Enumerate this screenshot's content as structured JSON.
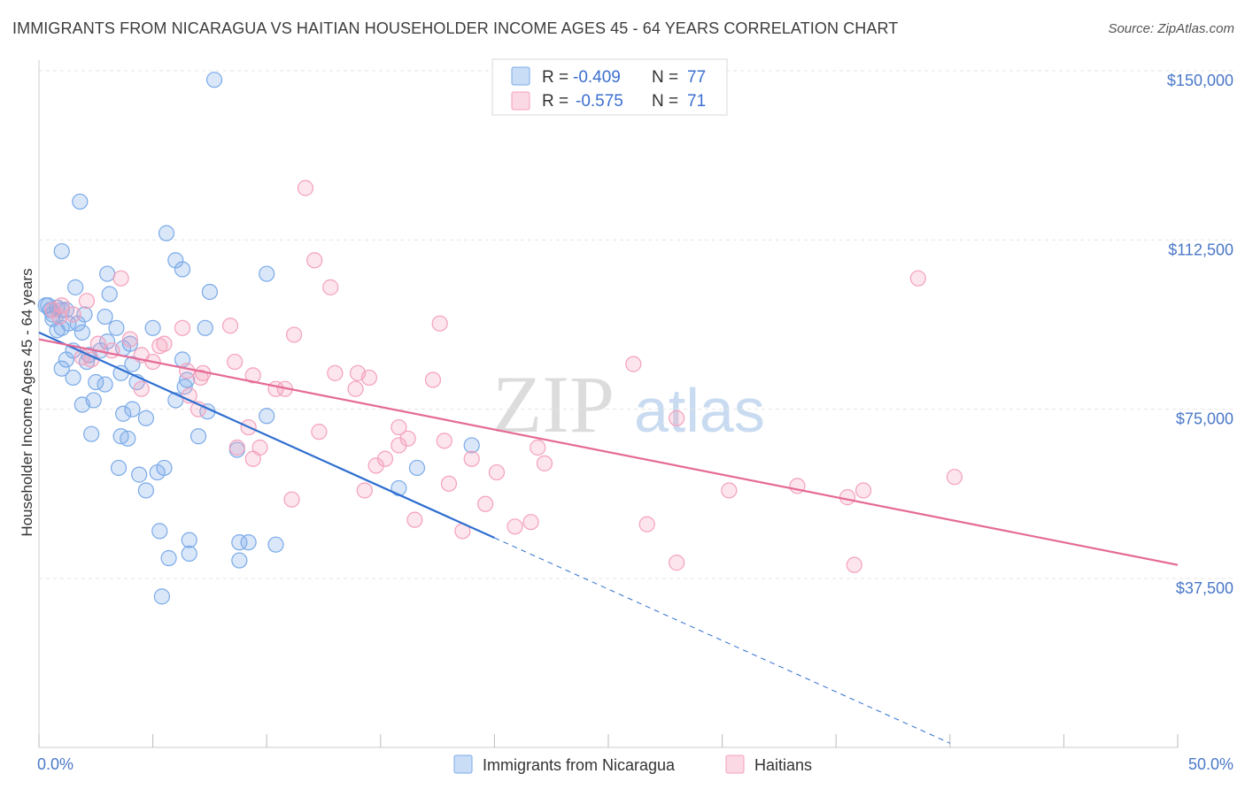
{
  "title": "IMMIGRANTS FROM NICARAGUA VS HAITIAN HOUSEHOLDER INCOME AGES 45 - 64 YEARS CORRELATION CHART",
  "source": "Source: ZipAtlas.com",
  "watermark": {
    "zip": "ZIP",
    "atlas": "atlas"
  },
  "chart_data": {
    "type": "scatter",
    "xlabel": "",
    "ylabel": "Householder Income Ages 45 - 64 years",
    "xlim": [
      0,
      50
    ],
    "ylim": [
      0,
      155000
    ],
    "x_tick_labels": [
      "0.0%",
      "50.0%"
    ],
    "y_ticks": [
      {
        "value": 37500,
        "label": "$37,500"
      },
      {
        "value": 75000,
        "label": "$75,000"
      },
      {
        "value": 112500,
        "label": "$112,500"
      },
      {
        "value": 150000,
        "label": "$150,000"
      }
    ],
    "legend_stats": [
      {
        "r_label": "R =",
        "r": "-0.409",
        "n_label": "N =",
        "n": "77"
      },
      {
        "r_label": "R =",
        "r": "-0.575",
        "n_label": "N =",
        "n": "71"
      }
    ],
    "series": [
      {
        "name": "Immigrants from Nicaragua",
        "color": "#7aaae8",
        "line_color": "#2f6fd0",
        "trend": {
          "x0": 0,
          "y0": 92000,
          "x1": 20,
          "y1": 46500,
          "dash_to_x": 40,
          "dash_to_y": 1000
        },
        "points": [
          [
            7.7,
            148000
          ],
          [
            1.8,
            121000
          ],
          [
            1.0,
            110000
          ],
          [
            5.6,
            114000
          ],
          [
            6.0,
            108000
          ],
          [
            6.3,
            106000
          ],
          [
            3.0,
            105000
          ],
          [
            10.0,
            105000
          ],
          [
            1.6,
            102000
          ],
          [
            7.5,
            101000
          ],
          [
            3.1,
            100500
          ],
          [
            0.4,
            98000
          ],
          [
            0.5,
            97000
          ],
          [
            0.8,
            97500
          ],
          [
            1.2,
            97000
          ],
          [
            0.6,
            96000
          ],
          [
            2.0,
            96000
          ],
          [
            1.7,
            94000
          ],
          [
            2.9,
            95500
          ],
          [
            1.0,
            93000
          ],
          [
            3.4,
            93000
          ],
          [
            5.0,
            93000
          ],
          [
            7.3,
            93000
          ],
          [
            0.8,
            92500
          ],
          [
            1.9,
            92000
          ],
          [
            4.0,
            89500
          ],
          [
            3.7,
            88500
          ],
          [
            2.7,
            88000
          ],
          [
            1.5,
            88000
          ],
          [
            2.2,
            87000
          ],
          [
            1.2,
            86000
          ],
          [
            6.3,
            86000
          ],
          [
            4.1,
            85000
          ],
          [
            2.1,
            85500
          ],
          [
            1.0,
            84000
          ],
          [
            3.6,
            83000
          ],
          [
            1.5,
            82000
          ],
          [
            2.5,
            81000
          ],
          [
            2.9,
            80500
          ],
          [
            4.3,
            81000
          ],
          [
            6.4,
            80000
          ],
          [
            6.5,
            81500
          ],
          [
            2.4,
            77000
          ],
          [
            1.9,
            76000
          ],
          [
            4.1,
            75000
          ],
          [
            7.4,
            74500
          ],
          [
            3.7,
            74000
          ],
          [
            10.0,
            73500
          ],
          [
            4.7,
            73000
          ],
          [
            2.3,
            69500
          ],
          [
            3.6,
            69000
          ],
          [
            7.0,
            69000
          ],
          [
            3.9,
            68500
          ],
          [
            8.7,
            66000
          ],
          [
            19.0,
            67000
          ],
          [
            3.5,
            62000
          ],
          [
            5.5,
            62000
          ],
          [
            5.2,
            61000
          ],
          [
            4.4,
            60500
          ],
          [
            16.6,
            62000
          ],
          [
            4.7,
            57000
          ],
          [
            15.8,
            57500
          ],
          [
            5.3,
            48000
          ],
          [
            6.6,
            46000
          ],
          [
            8.8,
            45500
          ],
          [
            9.2,
            45500
          ],
          [
            10.4,
            45000
          ],
          [
            6.6,
            43000
          ],
          [
            5.7,
            42000
          ],
          [
            8.8,
            41500
          ],
          [
            5.4,
            33500
          ],
          [
            0.3,
            98000
          ],
          [
            1.0,
            97000
          ],
          [
            0.6,
            95000
          ],
          [
            1.3,
            94000
          ],
          [
            3.0,
            90000
          ],
          [
            6.0,
            77000
          ]
        ]
      },
      {
        "name": "Haitians",
        "color": "#f4a0bc",
        "line_color": "#e56a96",
        "trend": {
          "x0": 0,
          "y0": 90500,
          "x1": 50,
          "y1": 40500
        },
        "points": [
          [
            11.7,
            124000
          ],
          [
            12.1,
            108000
          ],
          [
            3.6,
            104000
          ],
          [
            38.6,
            104000
          ],
          [
            12.8,
            102000
          ],
          [
            2.1,
            99000
          ],
          [
            1.0,
            98000
          ],
          [
            0.6,
            97000
          ],
          [
            1.5,
            96000
          ],
          [
            17.6,
            94000
          ],
          [
            6.3,
            93000
          ],
          [
            8.4,
            93500
          ],
          [
            11.2,
            91500
          ],
          [
            4.0,
            90500
          ],
          [
            5.5,
            89500
          ],
          [
            5.3,
            89000
          ],
          [
            3.2,
            88000
          ],
          [
            4.5,
            87000
          ],
          [
            1.9,
            86500
          ],
          [
            2.3,
            86000
          ],
          [
            5.0,
            85500
          ],
          [
            8.6,
            85500
          ],
          [
            26.1,
            85000
          ],
          [
            6.5,
            83500
          ],
          [
            7.2,
            83000
          ],
          [
            13.0,
            83000
          ],
          [
            14.0,
            83000
          ],
          [
            9.4,
            82500
          ],
          [
            14.5,
            82000
          ],
          [
            7.1,
            82000
          ],
          [
            17.3,
            81500
          ],
          [
            10.4,
            79500
          ],
          [
            10.8,
            79500
          ],
          [
            13.9,
            79500
          ],
          [
            4.5,
            79500
          ],
          [
            6.6,
            78000
          ],
          [
            7.0,
            75000
          ],
          [
            28.0,
            73000
          ],
          [
            9.2,
            71000
          ],
          [
            15.8,
            71000
          ],
          [
            16.2,
            68500
          ],
          [
            12.3,
            70000
          ],
          [
            17.8,
            68000
          ],
          [
            8.7,
            66500
          ],
          [
            9.7,
            66500
          ],
          [
            15.8,
            67000
          ],
          [
            21.9,
            66500
          ],
          [
            9.4,
            64000
          ],
          [
            15.2,
            64000
          ],
          [
            14.8,
            62500
          ],
          [
            19.0,
            64000
          ],
          [
            22.2,
            63000
          ],
          [
            20.1,
            61000
          ],
          [
            40.2,
            60000
          ],
          [
            18.0,
            58500
          ],
          [
            33.3,
            58000
          ],
          [
            30.3,
            57000
          ],
          [
            36.2,
            57000
          ],
          [
            35.5,
            55500
          ],
          [
            14.3,
            57000
          ],
          [
            11.1,
            55000
          ],
          [
            19.6,
            54000
          ],
          [
            20.9,
            49000
          ],
          [
            21.6,
            50000
          ],
          [
            26.7,
            49500
          ],
          [
            18.6,
            48000
          ],
          [
            16.5,
            50500
          ],
          [
            28.0,
            41000
          ],
          [
            35.8,
            40500
          ],
          [
            2.6,
            89500
          ],
          [
            0.9,
            95500
          ]
        ]
      }
    ]
  }
}
